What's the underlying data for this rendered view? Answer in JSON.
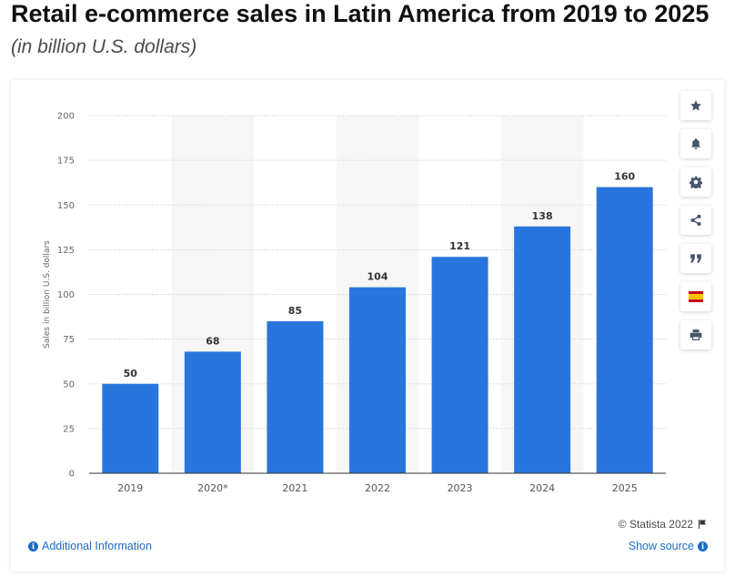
{
  "header": {
    "title": "Retail e-commerce sales in Latin America from 2019 to 2025",
    "subtitle": "(in billion U.S. dollars)"
  },
  "chart_data": {
    "type": "bar",
    "categories": [
      "2019",
      "2020*",
      "2021",
      "2022",
      "2023",
      "2024",
      "2025"
    ],
    "values": [
      50,
      68,
      85,
      104,
      121,
      138,
      160
    ],
    "ylabel": "Sales in billion U.S. dollars",
    "xlabel": "",
    "ylim": [
      0,
      200
    ],
    "yticks": [
      0,
      25,
      50,
      75,
      100,
      125,
      150,
      175,
      200
    ],
    "grid": true,
    "bar_color": "#2876dd",
    "band_color": "#f6f6f6"
  },
  "toolbar": {
    "items": [
      {
        "name": "favorite-button",
        "icon": "star-icon"
      },
      {
        "name": "notification-button",
        "icon": "bell-icon"
      },
      {
        "name": "settings-button",
        "icon": "gear-icon"
      },
      {
        "name": "share-button",
        "icon": "share-icon"
      },
      {
        "name": "cite-button",
        "icon": "quote-icon"
      },
      {
        "name": "language-button",
        "icon": "spain-flag-icon"
      },
      {
        "name": "print-button",
        "icon": "print-icon"
      }
    ]
  },
  "footer": {
    "copyright": "© Statista 2022",
    "additional_info": "Additional Information",
    "show_source": "Show source"
  },
  "colors": {
    "accent": "#1c6bc4",
    "bar": "#2876dd",
    "icon": "#4a5568"
  }
}
